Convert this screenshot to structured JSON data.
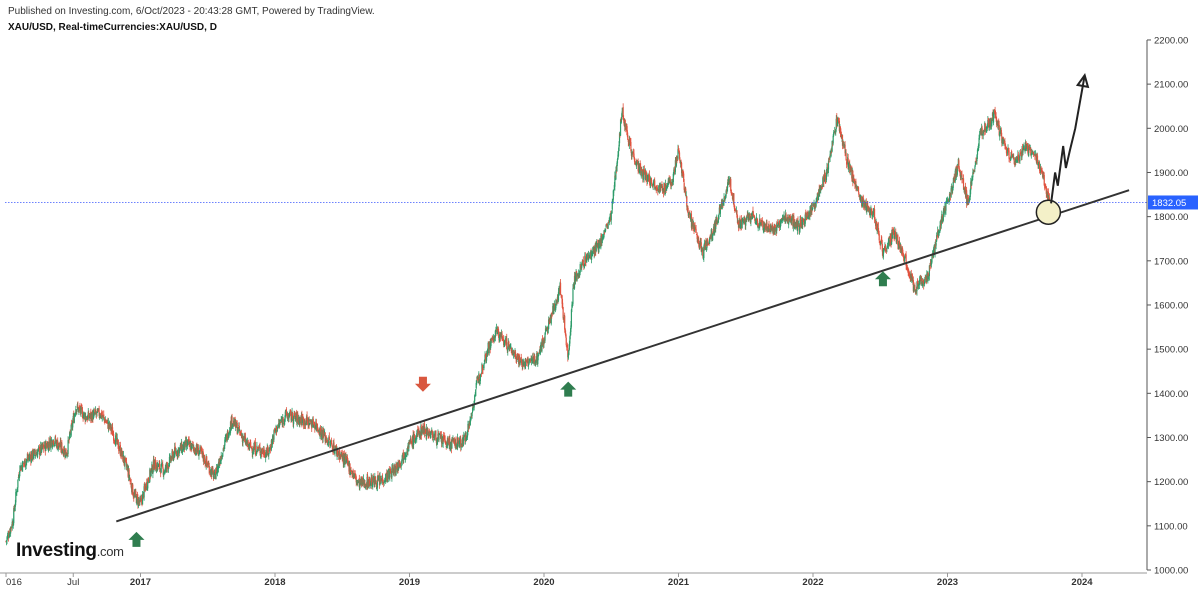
{
  "header": {
    "published": "Published on Investing.com, 6/Oct/2023 - 20:43:28 GMT, Powered by TradingView.",
    "symbol": "XAU/USD, Real-timeCurrencies:XAU/USD, D"
  },
  "logo": {
    "main": "Investing",
    "suffix": ".com"
  },
  "colors": {
    "up": "#2e9c6a",
    "down": "#e0533f",
    "trendline": "#333333",
    "price_line": "#3d5afe",
    "arrow_up": "#2f7d4f",
    "arrow_down": "#d9573f",
    "circle_fill": "#f4f0c8"
  },
  "chart_data": {
    "type": "candlestick",
    "title": "XAU/USD, Real-timeCurrencies:XAU/USD, D",
    "x_tick_labels": [
      "016",
      "Jul",
      "2017",
      "2018",
      "2019",
      "2020",
      "2021",
      "2022",
      "2023",
      "2024"
    ],
    "x_tick_dates": [
      2016.0,
      2016.5,
      2017.0,
      2018.0,
      2019.0,
      2020.0,
      2021.0,
      2022.0,
      2023.0,
      2024.0
    ],
    "y_ticks": [
      1000,
      1100,
      1200,
      1300,
      1400,
      1500,
      1600,
      1700,
      1800,
      1900,
      2000,
      2100,
      2200
    ],
    "y_tick_labels": [
      "1000.00",
      "1100.00",
      "1200.00",
      "1300.00",
      "1400.00",
      "1500.00",
      "1600.00",
      "1700.00",
      "1800.00",
      "1900.00",
      "2000.00",
      "2100.00",
      "2200.00"
    ],
    "xlim": [
      2016.0,
      2024.4
    ],
    "ylim": [
      1000,
      2200
    ],
    "current_price": 1832.05,
    "current_price_label": "1832.05",
    "price_path": [
      [
        2016.0,
        1065
      ],
      [
        2016.05,
        1110
      ],
      [
        2016.1,
        1230
      ],
      [
        2016.17,
        1255
      ],
      [
        2016.25,
        1270
      ],
      [
        2016.35,
        1295
      ],
      [
        2016.45,
        1265
      ],
      [
        2016.52,
        1370
      ],
      [
        2016.6,
        1345
      ],
      [
        2016.7,
        1355
      ],
      [
        2016.78,
        1320
      ],
      [
        2016.85,
        1270
      ],
      [
        2016.9,
        1230
      ],
      [
        2016.95,
        1170
      ],
      [
        2017.0,
        1150
      ],
      [
        2017.05,
        1200
      ],
      [
        2017.1,
        1240
      ],
      [
        2017.18,
        1225
      ],
      [
        2017.25,
        1265
      ],
      [
        2017.35,
        1285
      ],
      [
        2017.45,
        1265
      ],
      [
        2017.55,
        1210
      ],
      [
        2017.68,
        1340
      ],
      [
        2017.8,
        1280
      ],
      [
        2017.95,
        1265
      ],
      [
        2018.0,
        1315
      ],
      [
        2018.08,
        1350
      ],
      [
        2018.2,
        1340
      ],
      [
        2018.3,
        1330
      ],
      [
        2018.4,
        1290
      ],
      [
        2018.5,
        1255
      ],
      [
        2018.55,
        1235
      ],
      [
        2018.62,
        1195
      ],
      [
        2018.7,
        1200
      ],
      [
        2018.78,
        1200
      ],
      [
        2018.9,
        1230
      ],
      [
        2019.0,
        1285
      ],
      [
        2019.1,
        1320
      ],
      [
        2019.2,
        1300
      ],
      [
        2019.3,
        1285
      ],
      [
        2019.4,
        1290
      ],
      [
        2019.45,
        1335
      ],
      [
        2019.5,
        1420
      ],
      [
        2019.58,
        1500
      ],
      [
        2019.65,
        1540
      ],
      [
        2019.75,
        1500
      ],
      [
        2019.85,
        1465
      ],
      [
        2019.95,
        1480
      ],
      [
        2020.05,
        1570
      ],
      [
        2020.12,
        1640
      ],
      [
        2020.18,
        1480
      ],
      [
        2020.22,
        1650
      ],
      [
        2020.3,
        1700
      ],
      [
        2020.4,
        1730
      ],
      [
        2020.5,
        1800
      ],
      [
        2020.58,
        2040
      ],
      [
        2020.65,
        1950
      ],
      [
        2020.72,
        1900
      ],
      [
        2020.8,
        1880
      ],
      [
        2020.88,
        1860
      ],
      [
        2020.95,
        1880
      ],
      [
        2021.0,
        1950
      ],
      [
        2021.08,
        1800
      ],
      [
        2021.18,
        1720
      ],
      [
        2021.25,
        1760
      ],
      [
        2021.38,
        1880
      ],
      [
        2021.45,
        1780
      ],
      [
        2021.55,
        1800
      ],
      [
        2021.62,
        1780
      ],
      [
        2021.72,
        1770
      ],
      [
        2021.8,
        1800
      ],
      [
        2021.9,
        1780
      ],
      [
        2022.0,
        1820
      ],
      [
        2022.1,
        1900
      ],
      [
        2022.18,
        2020
      ],
      [
        2022.25,
        1930
      ],
      [
        2022.35,
        1840
      ],
      [
        2022.45,
        1810
      ],
      [
        2022.52,
        1720
      ],
      [
        2022.6,
        1760
      ],
      [
        2022.68,
        1710
      ],
      [
        2022.75,
        1640
      ],
      [
        2022.85,
        1660
      ],
      [
        2022.95,
        1790
      ],
      [
        2023.0,
        1830
      ],
      [
        2023.08,
        1920
      ],
      [
        2023.15,
        1830
      ],
      [
        2023.25,
        1990
      ],
      [
        2023.35,
        2030
      ],
      [
        2023.42,
        1960
      ],
      [
        2023.5,
        1920
      ],
      [
        2023.58,
        1960
      ],
      [
        2023.68,
        1920
      ],
      [
        2023.72,
        1880
      ],
      [
        2023.75,
        1840
      ],
      [
        2023.76,
        1832
      ]
    ],
    "trendline": [
      [
        2016.82,
        1110
      ],
      [
        2024.35,
        1860
      ]
    ],
    "up_arrows_dates": [
      [
        2016.97,
        1100
      ],
      [
        2020.18,
        1440
      ],
      [
        2022.52,
        1690
      ]
    ],
    "down_arrow_dates": [
      [
        2019.1,
        1390
      ]
    ],
    "circle_at": [
      2023.75,
      1810
    ],
    "projection": [
      [
        2023.77,
        1830
      ],
      [
        2023.8,
        1900
      ],
      [
        2023.82,
        1870
      ],
      [
        2023.86,
        1960
      ],
      [
        2023.88,
        1910
      ],
      [
        2023.91,
        1950
      ],
      [
        2023.95,
        2000
      ],
      [
        2024.02,
        2120
      ]
    ]
  }
}
